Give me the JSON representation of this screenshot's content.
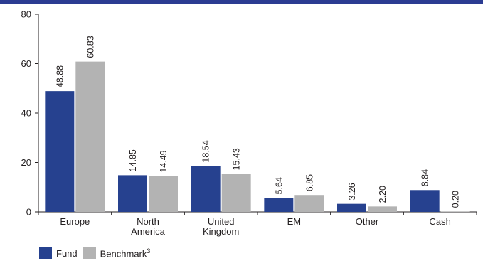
{
  "colors": {
    "top_bar": "#2b3c92",
    "fund": "#26418f",
    "benchmark": "#b3b3b3",
    "axis": "#231f20"
  },
  "legend": {
    "fund_label": "Fund",
    "benchmark_label": "Benchmark",
    "benchmark_footnote": "3"
  },
  "chart_data": {
    "type": "bar",
    "categories": [
      [
        "Europe"
      ],
      [
        "North",
        "America"
      ],
      [
        "United",
        "Kingdom"
      ],
      [
        "EM"
      ],
      [
        "Other"
      ],
      [
        "Cash"
      ]
    ],
    "series": [
      {
        "name": "Fund",
        "values": [
          48.88,
          14.85,
          18.54,
          5.64,
          3.26,
          8.84
        ],
        "labels": [
          "48.88",
          "14.85",
          "18.54",
          "5.64",
          "3.26",
          "8.84"
        ]
      },
      {
        "name": "Benchmark",
        "values": [
          60.83,
          14.49,
          15.43,
          6.85,
          2.2,
          0.2
        ],
        "labels": [
          "60.83",
          "14.49",
          "15.43",
          "6.85",
          "2.20",
          "0.20"
        ]
      }
    ],
    "ylim": [
      0,
      80
    ],
    "yticks": [
      "0",
      "20",
      "40",
      "60",
      "80"
    ],
    "grid": false,
    "legend_position": "bottom-left"
  }
}
